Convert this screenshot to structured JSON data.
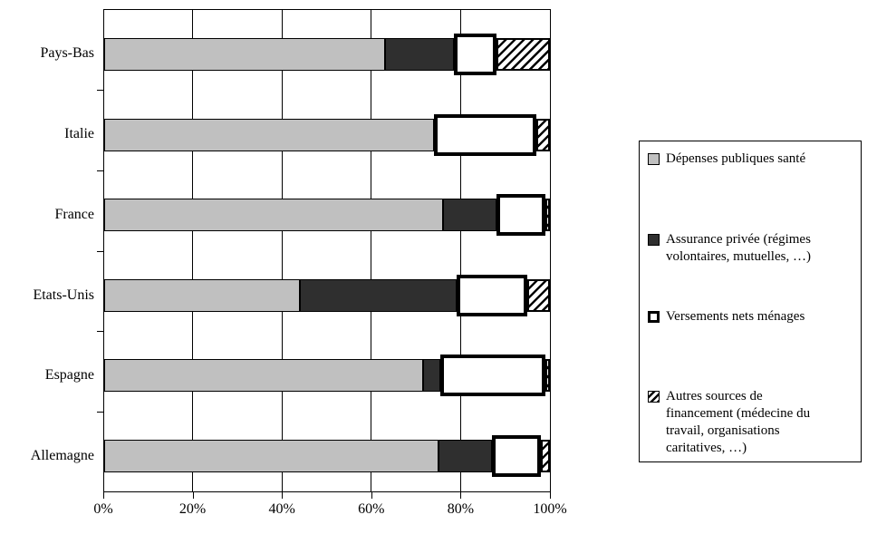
{
  "chart_data": {
    "type": "bar",
    "orientation": "horizontal-stacked",
    "title": "",
    "xlabel": "",
    "ylabel": "",
    "xlim": [
      0,
      100
    ],
    "x_tick_labels": [
      "0%",
      "20%",
      "40%",
      "60%",
      "80%",
      "100%"
    ],
    "grid": "vertical-only",
    "legend_position": "right",
    "categories": [
      "Pays-Bas",
      "Italie",
      "France",
      "Etats-Unis",
      "Espagne",
      "Allemagne"
    ],
    "series": [
      {
        "key": "public",
        "name": "Dépenses publiques santé",
        "legend_lines": [
          "Dépenses publiques santé"
        ],
        "color": "#c0c0c0",
        "fill_style": "solid",
        "values": [
          63,
          74,
          76,
          44,
          71.5,
          75
        ]
      },
      {
        "key": "private",
        "name": "Assurance privée (régimes volontaires, mutuelles, …)",
        "legend_lines": [
          "Assurance privée (régimes",
          "volontaires, mutuelles, …)"
        ],
        "color": "#2f2f2f",
        "fill_style": "solid",
        "values": [
          15.5,
          0,
          12,
          35,
          4,
          12
        ]
      },
      {
        "key": "household",
        "name": "Versements nets ménages",
        "legend_lines": [
          "Versements nets ménages"
        ],
        "color": "#ffffff",
        "fill_style": "thick-black-border",
        "values": [
          9.5,
          23,
          11,
          16,
          23.5,
          11
        ]
      },
      {
        "key": "other",
        "name": "Autres sources de financement (médecine du travail, organisations caritatives, …)",
        "legend_lines": [
          "Autres sources de",
          "financement (médecine du",
          "travail, organisations",
          "caritatives, …)"
        ],
        "color": "#000000",
        "fill_style": "diagonal-hatch",
        "values": [
          12,
          3,
          1,
          5,
          1,
          2
        ]
      }
    ],
    "colors": {
      "axis_and_border": "#000000",
      "bar_public": "#c0c0c0",
      "bar_private": "#2f2f2f",
      "bar_household_fill": "#ffffff",
      "hatch_foreground": "#000000",
      "background": "#ffffff"
    }
  }
}
